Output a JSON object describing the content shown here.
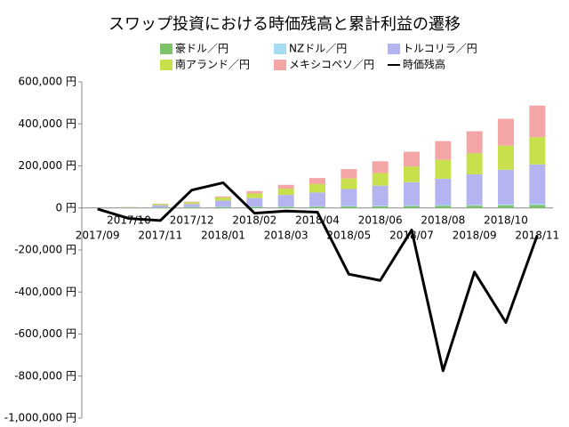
{
  "chart_data": {
    "type": "bar",
    "title": "スワップ投資における時価残高と累計利益の遷移",
    "categories": [
      "2017/09",
      "2017/10",
      "2017/11",
      "2017/12",
      "2018/01",
      "2018/02",
      "2018/03",
      "2018/04",
      "2018/05",
      "2018/06",
      "2018/07",
      "2018/08",
      "2018/09",
      "2018/10",
      "2018/11"
    ],
    "stacked": true,
    "series": [
      {
        "name": "豪ドル／円",
        "color": "#7cc36a",
        "values": [
          0,
          1000,
          2000,
          3000,
          4000,
          5000,
          5000,
          6000,
          7000,
          8000,
          9000,
          10000,
          11000,
          12000,
          14000
        ]
      },
      {
        "name": "NZドル／円",
        "color": "#a6dcf2",
        "values": [
          0,
          500,
          1000,
          1000,
          1500,
          2000,
          2000,
          2500,
          3000,
          3000,
          3500,
          4000,
          4000,
          4500,
          5000
        ]
      },
      {
        "name": "トルコリラ／円",
        "color": "#b4b4f0",
        "values": [
          0,
          2000,
          10000,
          15000,
          30000,
          40000,
          55000,
          65000,
          80000,
          95000,
          110000,
          125000,
          145000,
          165000,
          188000
        ]
      },
      {
        "name": "南アランド／円",
        "color": "#c8e04c",
        "values": [
          0,
          1000,
          5000,
          8000,
          15000,
          22000,
          30000,
          40000,
          50000,
          60000,
          75000,
          90000,
          100000,
          115000,
          130000
        ]
      },
      {
        "name": "メキシコペソ／円",
        "color": "#f4a6a6",
        "values": [
          0,
          500,
          2000,
          3000,
          4500,
          11000,
          18000,
          29000,
          45000,
          56000,
          70000,
          89000,
          105000,
          128000,
          150000
        ]
      },
      {
        "name": "時価残高",
        "type": "line",
        "color": "#000000",
        "values": [
          -5000,
          -50000,
          -60000,
          85000,
          120000,
          -25000,
          -15000,
          -20000,
          -315000,
          -345000,
          -105000,
          -775000,
          -305000,
          -545000,
          -130000
        ]
      }
    ],
    "ylim": [
      -1000000,
      600000
    ],
    "yticks": [
      {
        "value": -1000000,
        "label": "-1,000,000 円"
      },
      {
        "value": -800000,
        "label": "-800,000 円"
      },
      {
        "value": -600000,
        "label": "-600,000 円"
      },
      {
        "value": -400000,
        "label": "-400,000 円"
      },
      {
        "value": -200000,
        "label": "-200,000 円"
      },
      {
        "value": 0,
        "label": "0 円"
      },
      {
        "value": 200000,
        "label": "200,000 円"
      },
      {
        "value": 400000,
        "label": "400,000 円"
      },
      {
        "value": 600000,
        "label": "600,000 円"
      }
    ]
  }
}
